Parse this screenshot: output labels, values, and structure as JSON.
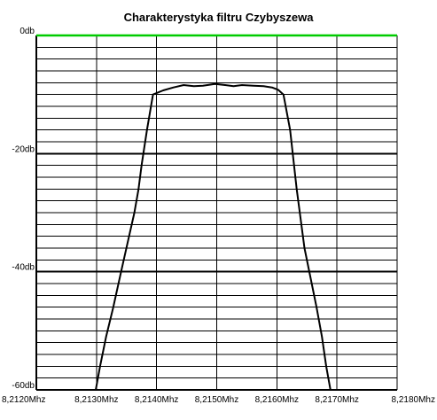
{
  "chart_data": {
    "type": "line",
    "title": "Charakterystyka filtru Czybyszewa",
    "xlabel": "",
    "ylabel": "",
    "xlim": [
      8.212,
      8.218
    ],
    "ylim": [
      -60,
      0
    ],
    "x_ticks": [
      "8,2120Mhz",
      "8,2130Mhz",
      "8,2140Mhz",
      "8,2150Mhz",
      "8,2160Mhz",
      "8,2170Mhz",
      "8,2180Mhz"
    ],
    "y_ticks": [
      "0db",
      "-20db",
      "-40db",
      "-60db"
    ],
    "grid": true,
    "series": [
      {
        "x": [
          8.21297,
          8.21306,
          8.21316,
          8.21328,
          8.21341,
          8.21352,
          8.21363,
          8.2137,
          8.21375,
          8.21384,
          8.21394,
          8.21411,
          8.21428,
          8.21445,
          8.21462,
          8.21477,
          8.21497,
          8.21514,
          8.21528,
          8.21542,
          8.21561,
          8.21578,
          8.21592,
          8.21602,
          8.21611,
          8.21622,
          8.21633,
          8.21646,
          8.21656,
          8.21666,
          8.21675,
          8.21682,
          8.2169
        ],
        "values": [
          -61,
          -56,
          -51,
          -46,
          -40,
          -35,
          -30,
          -26,
          -22,
          -16,
          -10,
          -9.3,
          -8.8,
          -8.4,
          -8.6,
          -8.5,
          -8.2,
          -8.4,
          -8.6,
          -8.4,
          -8.5,
          -8.6,
          -8.8,
          -9.2,
          -10,
          -16,
          -26,
          -36,
          -41,
          -46,
          -51,
          -56,
          -60.5
        ]
      }
    ]
  },
  "colors": {
    "background": "#ffffff",
    "grid_minor": "#000000",
    "grid_major": "#000000",
    "zero_line": "#00cc00",
    "curve": "#000000"
  }
}
